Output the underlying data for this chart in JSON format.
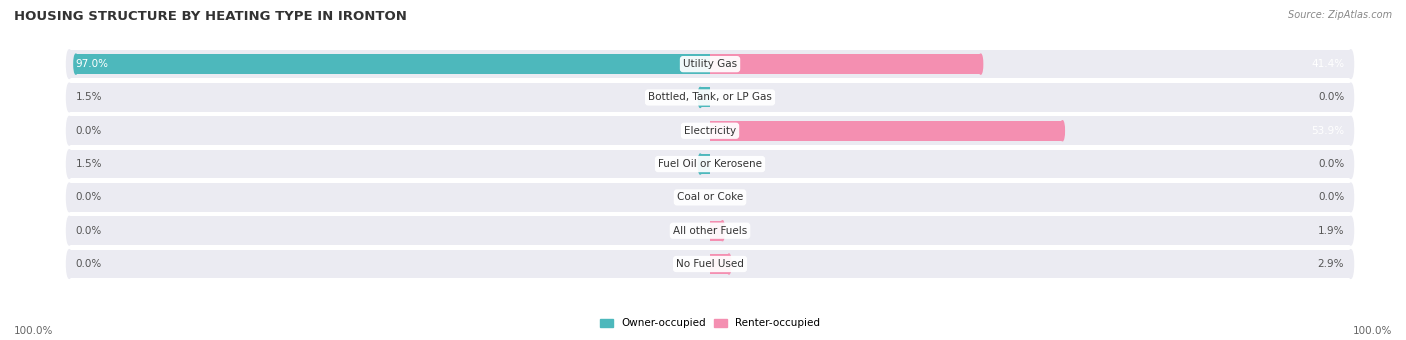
{
  "title": "HOUSING STRUCTURE BY HEATING TYPE IN IRONTON",
  "source": "Source: ZipAtlas.com",
  "categories": [
    "Utility Gas",
    "Bottled, Tank, or LP Gas",
    "Electricity",
    "Fuel Oil or Kerosene",
    "Coal or Coke",
    "All other Fuels",
    "No Fuel Used"
  ],
  "owner_values": [
    97.0,
    1.5,
    0.0,
    1.5,
    0.0,
    0.0,
    0.0
  ],
  "renter_values": [
    41.4,
    0.0,
    53.9,
    0.0,
    0.0,
    1.9,
    2.9
  ],
  "owner_color": "#4db8bc",
  "renter_color": "#f48fb1",
  "row_bg_color": "#ebebf2",
  "max_value": 100.0,
  "figsize": [
    14.06,
    3.4
  ],
  "dpi": 100,
  "title_fontsize": 9.5,
  "label_fontsize": 7.5,
  "source_fontsize": 7,
  "category_fontsize": 7.5
}
